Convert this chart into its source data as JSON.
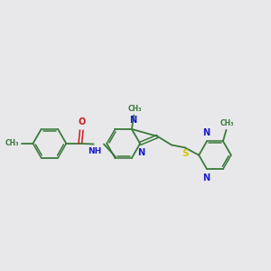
{
  "bg": "#e8e8eb",
  "bc": "#3a7a3a",
  "nc": "#1a1acc",
  "oc": "#cc1a1a",
  "sc": "#cccc00",
  "lw_single": 1.3,
  "lw_double": 1.1,
  "figsize": [
    3.0,
    3.0
  ],
  "dpi": 100,
  "xlim": [
    0,
    10
  ],
  "ylim": [
    2,
    8.5
  ]
}
